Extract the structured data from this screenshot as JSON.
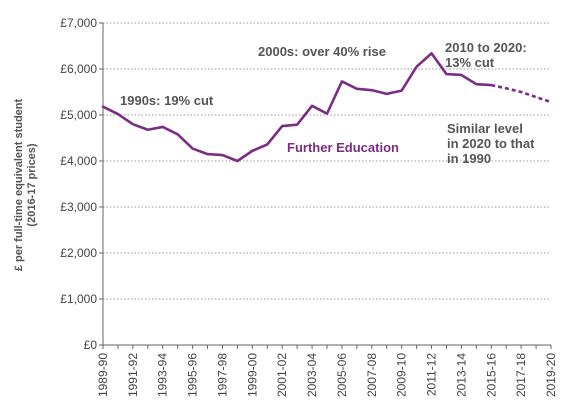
{
  "chart_data": {
    "type": "line",
    "title": "",
    "xlabel": "",
    "ylabel_lines": [
      "£ per full-time equivalent student",
      "(2016-17 prices)"
    ],
    "ylim": [
      0,
      7000
    ],
    "y_ticks": [
      0,
      1000,
      2000,
      3000,
      4000,
      5000,
      6000,
      7000
    ],
    "y_tick_labels": [
      "£0",
      "£1,000",
      "£2,000",
      "£3,000",
      "£4,000",
      "£5,000",
      "£6,000",
      "£7,000"
    ],
    "grid": "horizontal dotted",
    "categories": [
      "1989-90",
      "1990-91",
      "1991-92",
      "1992-93",
      "1993-94",
      "1994-95",
      "1995-96",
      "1996-97",
      "1997-98",
      "1998-99",
      "1999-00",
      "2000-01",
      "2001-02",
      "2002-03",
      "2003-04",
      "2004-05",
      "2005-06",
      "2006-07",
      "2007-08",
      "2008-09",
      "2009-10",
      "2010-11",
      "2011-12",
      "2012-13",
      "2013-14",
      "2014-15",
      "2015-16",
      "2016-17",
      "2017-18",
      "2018-19",
      "2019-20"
    ],
    "x_tick_labels": [
      "1989-90",
      "1991-92",
      "1993-94",
      "1995-96",
      "1997-98",
      "1999-00",
      "2001-02",
      "2003-04",
      "2005-06",
      "2007-08",
      "2009-10",
      "2011-12",
      "2013-14",
      "2015-16",
      "2017-18",
      "2019-20"
    ],
    "series": [
      {
        "name": "Further Education",
        "color": "#7b2c83",
        "values": [
          5180,
          5020,
          4800,
          4680,
          4740,
          4580,
          4270,
          4150,
          4130,
          4000,
          4220,
          4360,
          4760,
          4790,
          5200,
          5030,
          5730,
          5570,
          5540,
          5460,
          5530,
          6050,
          6340,
          5890,
          5870,
          5670,
          5650,
          5580,
          5500,
          5390,
          5280
        ],
        "projection_start_index": 27
      }
    ],
    "annotations": [
      {
        "lines": [
          "1990s: 19% cut"
        ]
      },
      {
        "lines": [
          "2000s: over 40% rise"
        ]
      },
      {
        "lines": [
          "2010 to 2020:",
          "13% cut"
        ]
      },
      {
        "lines": [
          "Similar level",
          "in 2020 to that",
          "in 1990"
        ]
      }
    ]
  }
}
